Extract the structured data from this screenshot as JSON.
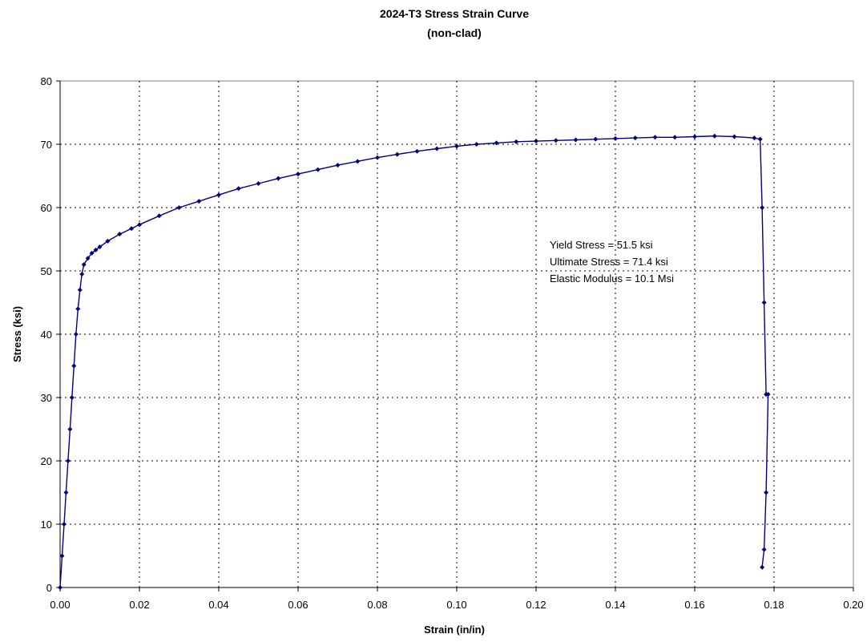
{
  "chart_data": {
    "type": "scatter",
    "title": "2024-T3 Stress Strain Curve",
    "subtitle": "(non-clad)",
    "xlabel": "Strain (in/in)",
    "ylabel": "Stress (ksi)",
    "xlim": [
      0,
      0.2
    ],
    "ylim": [
      0,
      80
    ],
    "x_ticks": [
      "0.00",
      "0.02",
      "0.04",
      "0.06",
      "0.08",
      "0.10",
      "0.12",
      "0.14",
      "0.16",
      "0.18",
      "0.20"
    ],
    "y_ticks": [
      "0",
      "10",
      "20",
      "30",
      "40",
      "50",
      "60",
      "70",
      "80"
    ],
    "grid": "dotted",
    "legend": "none",
    "series_color": "#000080",
    "annotations": [
      "Yield Stress = 51.5 ksi",
      "Ultimate Stress = 71.4 ksi",
      "Elastic Modulus = 10.1 Msi"
    ],
    "series": [
      {
        "x": [
          0.0,
          0.0005,
          0.001,
          0.0015,
          0.002,
          0.0025,
          0.003,
          0.0035,
          0.004,
          0.0045,
          0.005,
          0.0055,
          0.006,
          0.007,
          0.008,
          0.009,
          0.01,
          0.012,
          0.015,
          0.018,
          0.02,
          0.025,
          0.03,
          0.035,
          0.04,
          0.045,
          0.05,
          0.055,
          0.06,
          0.065,
          0.07,
          0.075,
          0.08,
          0.085,
          0.09,
          0.095,
          0.1,
          0.105,
          0.11,
          0.115,
          0.12,
          0.125,
          0.13,
          0.135,
          0.14,
          0.145,
          0.15,
          0.155,
          0.16,
          0.165,
          0.17,
          0.175,
          0.1765,
          0.177,
          0.1775,
          0.178,
          0.1785,
          0.178,
          0.1775,
          0.177
        ],
        "y": [
          0.0,
          5.0,
          10.0,
          15.0,
          20.0,
          25.0,
          30.0,
          35.0,
          40.0,
          44.0,
          47.0,
          49.5,
          51.0,
          52.0,
          52.8,
          53.3,
          53.8,
          54.7,
          55.8,
          56.7,
          57.3,
          58.7,
          60.0,
          61.0,
          62.0,
          63.0,
          63.8,
          64.6,
          65.3,
          66.0,
          66.7,
          67.3,
          67.9,
          68.4,
          68.9,
          69.3,
          69.7,
          70.0,
          70.2,
          70.4,
          70.5,
          70.6,
          70.7,
          70.8,
          70.9,
          71.0,
          71.1,
          71.1,
          71.2,
          71.3,
          71.2,
          71.0,
          70.8,
          60.0,
          45.0,
          30.5,
          30.5,
          15.0,
          6.0,
          3.2
        ]
      }
    ]
  }
}
